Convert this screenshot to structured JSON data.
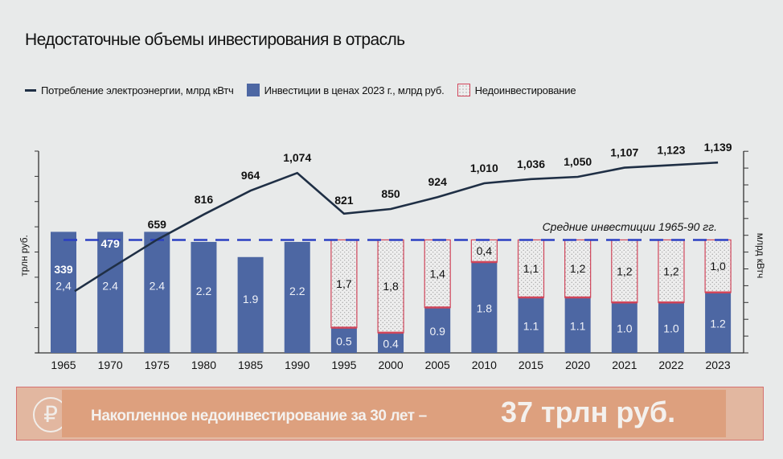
{
  "title": "Недостаточные объемы инвестирования в отрасль",
  "legend": {
    "line": "Потребление электроэнергии, млрд кВтч",
    "bar": "Инвестиции в ценах 2023 г., млрд руб.",
    "pattern": "Недоинвестирование"
  },
  "chart_data": {
    "type": "bar",
    "categories": [
      "1965",
      "1970",
      "1975",
      "1980",
      "1985",
      "1990",
      "1995",
      "2000",
      "2005",
      "2010",
      "2015",
      "2020",
      "2021",
      "2022",
      "2023"
    ],
    "ylabel_left": "трлн руб.",
    "ylabel_right": "млрд кВтч",
    "ylim_left": [
      0,
      4
    ],
    "ylim_right": [
      -45,
      1210
    ],
    "average_line": {
      "label": "Средние инвестиции 1965-90 гг.",
      "value": 2.24
    },
    "series": [
      {
        "name": "Инвестиции в ценах 2023 г., млрд руб.",
        "kind": "bar",
        "values": [
          2.4,
          2.4,
          2.4,
          2.2,
          1.9,
          2.2,
          0.5,
          0.4,
          0.9,
          1.8,
          1.1,
          1.1,
          1.0,
          1.0,
          1.2
        ],
        "labels": [
          "2,4",
          "2.4",
          "2.4",
          "2.2",
          "1.9",
          "2.2",
          "0.5",
          "0.4",
          "0.9",
          "1.8",
          "1.1",
          "1.1",
          "1.0",
          "1.0",
          "1.2"
        ]
      },
      {
        "name": "Недоинвестирование",
        "kind": "stacked-pattern",
        "values": [
          null,
          null,
          null,
          null,
          null,
          null,
          1.7,
          1.8,
          1.4,
          0.4,
          1.1,
          1.2,
          1.2,
          1.2,
          1.0
        ],
        "labels": [
          "",
          "",
          "",
          "",
          "",
          "",
          "1,7",
          "1,8",
          "1,4",
          "0,4",
          "1,1",
          "1,2",
          "1,2",
          "1,2",
          "1,0"
        ]
      },
      {
        "name": "Потребление электроэнергии, млрд кВтч",
        "kind": "line",
        "axis": "right",
        "values": [
          339,
          479,
          659,
          816,
          964,
          1074,
          821,
          850,
          924,
          1010,
          1036,
          1050,
          1107,
          1123,
          1139
        ],
        "labels": [
          "339",
          "479",
          "659",
          "816",
          "964",
          "1,074",
          "821",
          "850",
          "924",
          "1,010",
          "1,036",
          "1,050",
          "1,107",
          "1,123",
          "1,139"
        ]
      }
    ]
  },
  "banner": {
    "icon": "ruble-icon",
    "glyph": "₽",
    "text": "Накопленное недоинвестирование за 30 лет –",
    "value": "37 трлн руб."
  },
  "colors": {
    "bar": "#4d67a3",
    "line": "#1f2f45",
    "avg": "#2b3fc2",
    "gap_border": "#d0455a"
  }
}
